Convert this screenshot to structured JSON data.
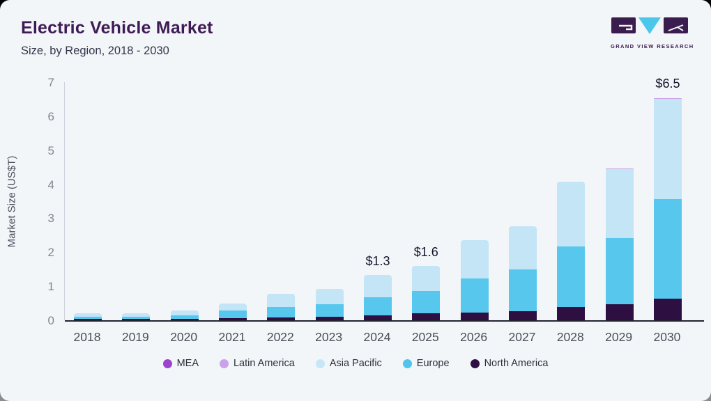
{
  "header": {
    "title": "Electric Vehicle Market",
    "subtitle": "Size, by Region, 2018 - 2030"
  },
  "logo": {
    "text": "GRAND VIEW RESEARCH",
    "box_color": "#3a1c4e",
    "triangle_color": "#4ac7ea"
  },
  "chart_data": {
    "type": "bar",
    "stacked": true,
    "title": "Electric Vehicle Market Size, by Region, 2018 - 2030",
    "xlabel": "",
    "ylabel": "Market Size (US$T)",
    "ylim": [
      0,
      7
    ],
    "yticks": [
      0,
      1,
      2,
      3,
      4,
      5,
      6,
      7
    ],
    "grid": false,
    "legend_position": "bottom",
    "categories": [
      "2018",
      "2019",
      "2020",
      "2021",
      "2022",
      "2023",
      "2024",
      "2025",
      "2026",
      "2027",
      "2028",
      "2029",
      "2030"
    ],
    "series": [
      {
        "name": "North America",
        "color": "#2d0f42",
        "values": [
          0.04,
          0.04,
          0.05,
          0.07,
          0.09,
          0.11,
          0.14,
          0.2,
          0.23,
          0.27,
          0.38,
          0.47,
          0.63
        ]
      },
      {
        "name": "Europe",
        "color": "#57c7ee",
        "values": [
          0.06,
          0.06,
          0.09,
          0.22,
          0.29,
          0.37,
          0.53,
          0.65,
          1.0,
          1.22,
          1.8,
          1.95,
          2.94
        ]
      },
      {
        "name": "Asia Pacific",
        "color": "#c3e5f6",
        "values": [
          0.1,
          0.1,
          0.14,
          0.21,
          0.4,
          0.45,
          0.66,
          0.74,
          1.12,
          1.27,
          1.89,
          2.02,
          2.93
        ]
      },
      {
        "name": "Latin America",
        "color": "#c9a2e8",
        "values": [
          0,
          0,
          0,
          0,
          0,
          0,
          0,
          0,
          0,
          0,
          0,
          0.03,
          0.04
        ]
      },
      {
        "name": "MEA",
        "color": "#9b44ce",
        "values": [
          0,
          0,
          0,
          0,
          0,
          0,
          0,
          0,
          0,
          0,
          0,
          0,
          0
        ]
      }
    ],
    "totals": [
      0.2,
      0.2,
      0.28,
      0.5,
      0.78,
      0.93,
      1.33,
      1.59,
      2.35,
      2.76,
      4.07,
      4.47,
      6.54
    ],
    "annotations": [
      {
        "category": "2024",
        "label": "$1.3"
      },
      {
        "category": "2025",
        "label": "$1.6"
      },
      {
        "category": "2030",
        "label": "$6.5"
      }
    ],
    "legend": [
      {
        "name": "MEA",
        "color": "#9b44ce"
      },
      {
        "name": "Latin America",
        "color": "#c9a2e8"
      },
      {
        "name": "Asia Pacific",
        "color": "#c7e7f8"
      },
      {
        "name": "Europe",
        "color": "#4fc4ec"
      },
      {
        "name": "North America",
        "color": "#2d0f42"
      }
    ]
  }
}
